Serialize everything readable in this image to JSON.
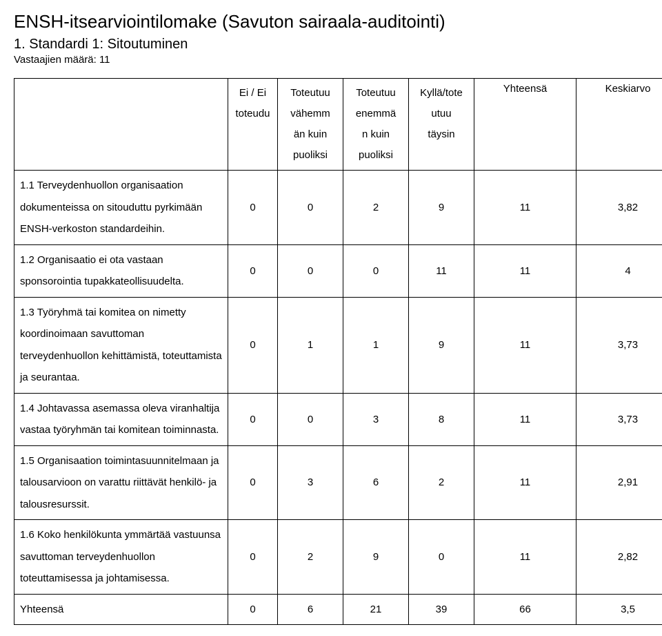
{
  "title": "ENSH-itsearviointilomake (Savuton sairaala-auditointi)",
  "section_title": "1. Standardi 1: Sitoutuminen",
  "respondents": "Vastaajien määrä: 11",
  "headers": {
    "col0": "",
    "col1_l1": "Ei / Ei",
    "col1_l2": "toteudu",
    "col2_l1": "Toteutuu",
    "col2_l2": "vähemm",
    "col2_l3": "än kuin",
    "col2_l4": "puoliksi",
    "col3_l1": "Toteutuu",
    "col3_l2": "enemmä",
    "col3_l3": "n kuin",
    "col3_l4": "puoliksi",
    "col4_l1": "Kyllä/tote",
    "col4_l2": "utuu",
    "col4_l3": "täysin",
    "col5": "Yhteensä",
    "col6": "Keskiarvo"
  },
  "rows": [
    {
      "label": "1.1 Terveydenhuollon organisaation dokumenteissa on sitouduttu pyrkimään ENSH-verkoston standardeihin.",
      "v": [
        "0",
        "0",
        "2",
        "9",
        "11",
        "3,82"
      ]
    },
    {
      "label": "1.2 Organisaatio ei ota vastaan sponsorointia tupakkateollisuudelta.",
      "v": [
        "0",
        "0",
        "0",
        "11",
        "11",
        "4"
      ]
    },
    {
      "label": "1.3 Työryhmä tai komitea on nimetty koordinoimaan savuttoman terveydenhuollon kehittämistä, toteuttamista ja seurantaa.",
      "v": [
        "0",
        "1",
        "1",
        "9",
        "11",
        "3,73"
      ]
    },
    {
      "label": "1.4 Johtavassa asemassa oleva viranhaltija vastaa työryhmän tai komitean toiminnasta.",
      "v": [
        "0",
        "0",
        "3",
        "8",
        "11",
        "3,73"
      ]
    },
    {
      "label": "1.5 Organisaation toimintasuunnitelmaan ja talousarvioon on varattu riittävät henkilö- ja talousresurssit.",
      "v": [
        "0",
        "3",
        "6",
        "2",
        "11",
        "2,91"
      ]
    },
    {
      "label": "1.6 Koko henkilökunta ymmärtää vastuunsa savuttoman terveydenhuollon toteuttamisessa ja johtamisessa.",
      "v": [
        "0",
        "2",
        "9",
        "0",
        "11",
        "2,82"
      ]
    }
  ],
  "total": {
    "label": "Yhteensä",
    "v": [
      "0",
      "6",
      "21",
      "39",
      "66",
      "3,5"
    ]
  }
}
